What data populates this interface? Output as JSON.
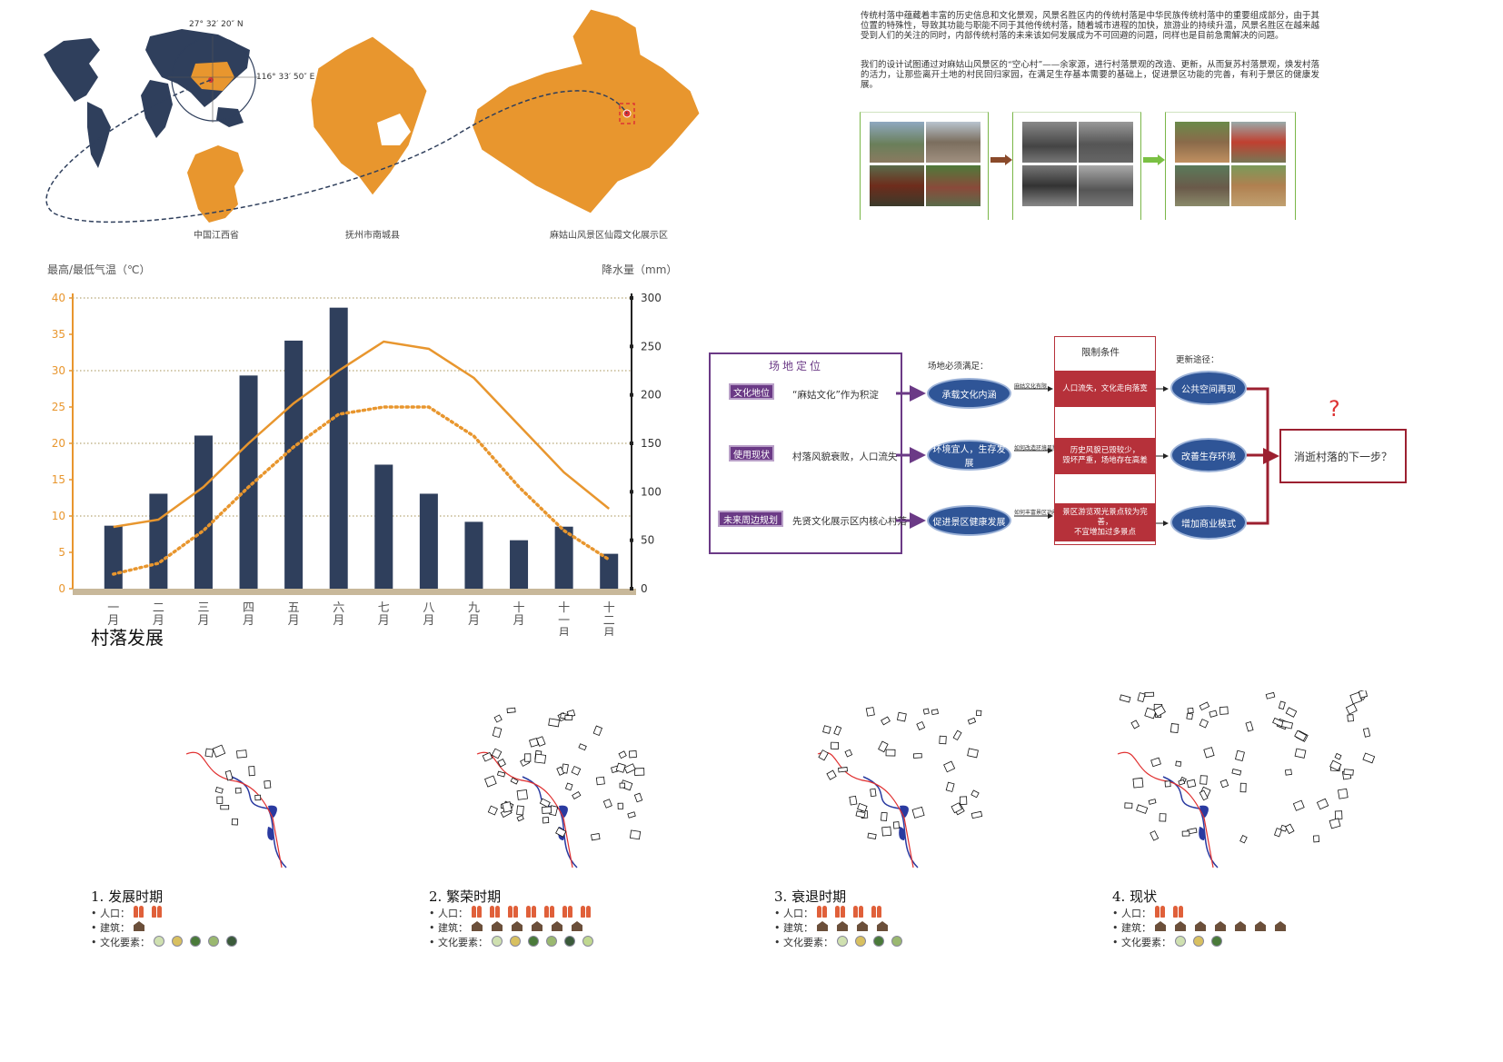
{
  "location": {
    "lat": "27° 32′ 20″ N",
    "lon": "116° 33′ 50″ E",
    "captions": [
      "中国江西省",
      "抚州市南城县",
      "麻姑山风景区仙霞文化展示区"
    ],
    "colors": {
      "world": "#2f3f5c",
      "province": "#e8962e",
      "marker": "#d33"
    }
  },
  "intro": {
    "p1": "传统村落中蕴藏着丰富的历史信息和文化景观，风景名胜区内的传统村落是中华民族传统村落中的重要组成部分，由于其位置的特殊性，导致其功能与职能不同于其他传统村落，随着城市进程的加快，旅游业的持续升温，风景名胜区在越来越受到人们的关注的同时，内部传统村落的未来该如何发展成为不可回避的问题，同样也是目前急需解决的问题。",
    "p2": "我们的设计试图通过对麻姑山风景区的“空心村”——余家源，进行村落景观的改造、更新，从而复苏村落景观，焕发村落的活力，让那些离开土地的村民回归家园，在满足生存基本需要的基础上，促进景区功能的完善，有利于景区的健康发展。"
  },
  "chart_data": {
    "type": "bar",
    "title": "",
    "ylabel": "最高/最低气温（℃）",
    "y2label": "降水量（mm）",
    "categories": [
      "一月",
      "二月",
      "三月",
      "四月",
      "五月",
      "六月",
      "七月",
      "八月",
      "九月",
      "十月",
      "十一月",
      "十二月"
    ],
    "ylim": [
      0,
      40
    ],
    "y2lim": [
      0,
      300
    ],
    "yticks": [
      0,
      5,
      10,
      15,
      20,
      25,
      30,
      35,
      40
    ],
    "y2ticks": [
      0,
      50,
      100,
      150,
      200,
      250,
      300
    ],
    "series": [
      {
        "type": "bar",
        "axis": "y2",
        "color": "#2f3f5c",
        "values": [
          65,
          98,
          158,
          220,
          256,
          290,
          128,
          98,
          69,
          50,
          64,
          36
        ]
      },
      {
        "type": "line",
        "axis": "y",
        "style": "solid",
        "color": "#e8962e",
        "values": [
          8.5,
          9.5,
          14,
          20,
          25.5,
          30,
          34,
          33,
          29,
          22.5,
          16,
          11
        ]
      },
      {
        "type": "line",
        "axis": "y",
        "style": "dotted",
        "color": "#e8962e",
        "values": [
          2,
          3.5,
          8,
          14,
          19.5,
          24,
          25,
          25,
          21,
          14,
          8,
          4
        ]
      }
    ],
    "grid": "dotted horizontal"
  },
  "section_title": "村落发展",
  "flow": {
    "header": "场地定位",
    "left_tags": [
      "文化地位",
      "使用现状",
      "未来周边规划"
    ],
    "left_texts": [
      "“麻姑文化”作为积淀",
      "村落风貌衰败，人口流失",
      "先贤文化展示区内核心村落"
    ],
    "must_label": "场地必须满足：",
    "ellipses_mid": [
      "承载文化内涵",
      "环境宜人，生存发展",
      "促进景区健康发展"
    ],
    "small_arrows": [
      "麻姑文化有限",
      "如何改造环境风貌",
      "如何丰富景区功能"
    ],
    "limits_header": "限制条件",
    "limits": [
      "人口流失，文化走向落寞",
      "历史风貌已毁较少，\n毁坏严重，场地存在高差",
      "景区游览观光景点较为完善，\n不宜增加过多景点"
    ],
    "path_label": "更新途径：",
    "ellipses_right": [
      "公共空间再现",
      "改善生存环境",
      "增加商业模式"
    ],
    "question": "?",
    "result": "消逝村落的下一步？"
  },
  "stages": [
    {
      "title": "1. 发展时期",
      "pop_label": "• 人口：",
      "bld_label": "• 建筑：",
      "cul_label": "• 文化要素：",
      "pop": 2,
      "bld": 1,
      "cul": 5
    },
    {
      "title": "2. 繁荣时期",
      "pop_label": "• 人口：",
      "bld_label": "• 建筑：",
      "cul_label": "• 文化要素：",
      "pop": 7,
      "bld": 6,
      "cul": 6
    },
    {
      "title": "3. 衰退时期",
      "pop_label": "• 人口：",
      "bld_label": "• 建筑：",
      "cul_label": "• 文化要素：",
      "pop": 4,
      "bld": 4,
      "cul": 4
    },
    {
      "title": "4. 现状",
      "pop_label": "• 人口：",
      "bld_label": "• 建筑：",
      "cul_label": "• 文化要素：",
      "pop": 2,
      "bld": 7,
      "cul": 3
    }
  ]
}
